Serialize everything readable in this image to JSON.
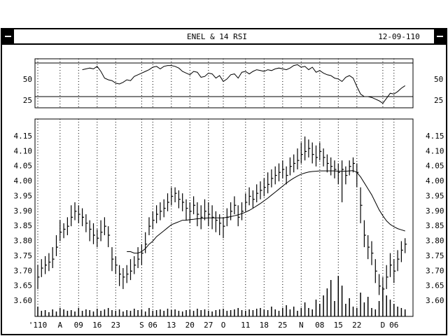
{
  "window": {
    "title": "ENEL & 14 RSI",
    "date": "12-09-110"
  },
  "chart_data": [
    {
      "type": "line",
      "color": "#000000",
      "ylim": [
        16.7,
        75
      ],
      "yticks": [
        25,
        50
      ],
      "reference_lines": [
        30,
        70
      ],
      "values": [
        null,
        null,
        null,
        null,
        null,
        null,
        null,
        null,
        null,
        null,
        null,
        null,
        62,
        63,
        64,
        63,
        66,
        60,
        52,
        50,
        49,
        46,
        45,
        47,
        50,
        49,
        54,
        56,
        58,
        60,
        62,
        65,
        66,
        63,
        66,
        67,
        67,
        66,
        64,
        60,
        58,
        56,
        60,
        59,
        53,
        54,
        58,
        57,
        52,
        55,
        48,
        51,
        56,
        57,
        52,
        59,
        60,
        57,
        60,
        62,
        61,
        60,
        62,
        61,
        63,
        64,
        63,
        62,
        64,
        67,
        68,
        65,
        66,
        62,
        65,
        59,
        61,
        58,
        56,
        55,
        52,
        51,
        48,
        53,
        55,
        52,
        42,
        33,
        30,
        30,
        29,
        27,
        25,
        22,
        28,
        34,
        33,
        36,
        40,
        43
      ]
    },
    {
      "type": "ohlc",
      "color": "#000000",
      "grid": true,
      "ylim": [
        3.5485,
        4.2085
      ],
      "yticks": [
        {
          "value": 3.6,
          "label": "3.60"
        },
        3.65,
        {
          "value": 3.7,
          "label": "3.70"
        },
        3.75,
        {
          "value": 3.8,
          "label": "3.80"
        },
        3.85,
        {
          "value": 3.9,
          "label": "3.90"
        },
        3.95,
        {
          "value": 4.0,
          "label": "4.00"
        },
        4.05,
        {
          "value": 4.1,
          "label": "4.10"
        },
        4.15
      ],
      "categories": [
        "'110",
        null,
        null,
        null,
        null,
        null,
        "A",
        null,
        null,
        null,
        null,
        "09",
        null,
        null,
        null,
        null,
        "16",
        null,
        null,
        null,
        null,
        "23",
        null,
        null,
        null,
        null,
        null,
        null,
        "S",
        null,
        null,
        "06",
        null,
        null,
        null,
        null,
        "13",
        null,
        null,
        null,
        null,
        "20",
        null,
        null,
        null,
        null,
        "27",
        null,
        null,
        null,
        "O",
        null,
        null,
        null,
        null,
        null,
        "11",
        null,
        null,
        null,
        null,
        "18",
        null,
        null,
        null,
        null,
        "25",
        null,
        null,
        null,
        null,
        "N",
        null,
        null,
        null,
        null,
        "08",
        null,
        null,
        null,
        null,
        "15",
        null,
        null,
        null,
        null,
        "22",
        null,
        null,
        null,
        null,
        null,
        null,
        "D",
        null,
        null,
        "06",
        null,
        null,
        null
      ],
      "high": [
        3.72,
        3.74,
        3.75,
        3.76,
        3.78,
        3.82,
        3.87,
        3.86,
        3.88,
        3.92,
        3.93,
        3.92,
        3.91,
        3.89,
        3.87,
        3.86,
        3.84,
        3.87,
        3.88,
        3.85,
        3.78,
        3.75,
        3.72,
        3.71,
        3.72,
        3.74,
        3.75,
        3.78,
        3.79,
        3.83,
        3.88,
        3.9,
        3.92,
        3.93,
        3.94,
        3.96,
        3.98,
        3.98,
        3.97,
        3.96,
        3.94,
        3.93,
        3.95,
        3.93,
        3.92,
        3.94,
        3.93,
        3.92,
        3.9,
        3.89,
        3.88,
        3.91,
        3.93,
        3.95,
        3.92,
        3.93,
        3.96,
        3.98,
        3.97,
        3.99,
        4.0,
        4.01,
        4.03,
        4.04,
        4.05,
        4.06,
        4.07,
        4.05,
        4.08,
        4.09,
        4.11,
        4.13,
        4.15,
        4.14,
        4.13,
        4.12,
        4.13,
        4.11,
        4.09,
        4.08,
        4.07,
        4.06,
        4.07,
        4.05,
        4.07,
        4.08,
        4.06,
        3.98,
        3.87,
        3.82,
        3.8,
        3.74,
        3.69,
        3.68,
        3.72,
        3.76,
        3.74,
        3.77,
        3.8,
        3.81
      ],
      "low": [
        3.64,
        3.68,
        3.69,
        3.7,
        3.71,
        3.75,
        3.8,
        3.81,
        3.82,
        3.85,
        3.87,
        3.86,
        3.85,
        3.83,
        3.8,
        3.79,
        3.78,
        3.8,
        3.82,
        3.78,
        3.7,
        3.69,
        3.65,
        3.64,
        3.66,
        3.67,
        3.69,
        3.71,
        3.72,
        3.76,
        3.82,
        3.84,
        3.86,
        3.87,
        3.88,
        3.9,
        3.92,
        3.93,
        3.91,
        3.9,
        3.87,
        3.86,
        3.89,
        3.85,
        3.84,
        3.87,
        3.85,
        3.84,
        3.83,
        3.82,
        3.81,
        3.85,
        3.87,
        3.89,
        3.85,
        3.87,
        3.9,
        3.92,
        3.91,
        3.93,
        3.94,
        3.95,
        3.96,
        3.98,
        3.99,
        4.0,
        4.01,
        3.99,
        4.02,
        4.03,
        4.04,
        4.06,
        4.07,
        4.08,
        4.06,
        4.05,
        4.07,
        4.05,
        4.03,
        4.02,
        4.01,
        3.99,
        3.93,
        3.99,
        4.02,
        4.03,
        3.98,
        3.86,
        3.78,
        3.74,
        3.72,
        3.66,
        3.62,
        3.6,
        3.64,
        3.68,
        3.66,
        3.7,
        3.73,
        3.76
      ],
      "close": [
        3.68,
        3.71,
        3.72,
        3.73,
        3.74,
        3.78,
        3.83,
        3.84,
        3.85,
        3.88,
        3.9,
        3.89,
        3.88,
        3.86,
        3.84,
        3.82,
        3.81,
        3.83,
        3.85,
        3.82,
        3.74,
        3.72,
        3.69,
        3.68,
        3.69,
        3.7,
        3.72,
        3.74,
        3.76,
        3.79,
        3.85,
        3.87,
        3.89,
        3.9,
        3.91,
        3.93,
        3.95,
        3.96,
        3.94,
        3.93,
        3.91,
        3.9,
        3.92,
        3.89,
        3.88,
        3.9,
        3.89,
        3.88,
        3.87,
        3.86,
        3.85,
        3.88,
        3.9,
        3.92,
        3.88,
        3.9,
        3.93,
        3.95,
        3.94,
        3.96,
        3.97,
        3.98,
        3.99,
        4.01,
        4.02,
        4.03,
        4.04,
        4.02,
        4.05,
        4.06,
        4.07,
        4.09,
        4.1,
        4.11,
        4.09,
        4.08,
        4.1,
        4.08,
        4.06,
        4.05,
        4.04,
        4.03,
        4.04,
        4.02,
        4.05,
        4.06,
        4.03,
        3.92,
        3.82,
        3.78,
        3.76,
        3.7,
        3.65,
        3.64,
        3.68,
        3.72,
        3.7,
        3.74,
        3.77,
        3.79
      ],
      "ma": [
        null,
        null,
        null,
        null,
        null,
        null,
        null,
        null,
        null,
        null,
        null,
        null,
        null,
        null,
        null,
        null,
        null,
        null,
        null,
        null,
        null,
        null,
        null,
        null,
        3.765,
        3.765,
        3.76,
        3.76,
        3.765,
        3.775,
        3.79,
        3.8,
        3.815,
        3.825,
        3.835,
        3.845,
        3.855,
        3.86,
        3.865,
        3.87,
        3.87,
        3.872,
        3.873,
        3.875,
        3.876,
        3.877,
        3.878,
        3.878,
        3.878,
        3.878,
        3.878,
        3.88,
        3.882,
        3.885,
        3.888,
        3.892,
        3.897,
        3.903,
        3.91,
        3.918,
        3.926,
        3.935,
        3.944,
        3.954,
        3.964,
        3.974,
        3.984,
        3.994,
        4.003,
        4.011,
        4.018,
        4.024,
        4.028,
        4.031,
        4.033,
        4.034,
        4.035,
        4.035,
        4.035,
        4.035,
        4.035,
        4.034,
        4.034,
        4.034,
        4.035,
        4.036,
        4.03,
        4.015,
        3.995,
        3.975,
        3.955,
        3.93,
        3.905,
        3.885,
        3.868,
        3.856,
        3.848,
        3.842,
        3.838,
        3.834
      ],
      "volume": [
        14,
        8,
        9,
        6,
        10,
        7,
        12,
        10,
        8,
        9,
        7,
        12,
        8,
        10,
        9,
        7,
        11,
        8,
        10,
        12,
        9,
        8,
        10,
        7,
        9,
        8,
        11,
        9,
        10,
        7,
        12,
        8,
        9,
        10,
        8,
        11,
        9,
        10,
        8,
        7,
        9,
        10,
        8,
        11,
        9,
        10,
        8,
        7,
        9,
        10,
        11,
        8,
        9,
        10,
        12,
        9,
        8,
        10,
        9,
        11,
        12,
        10,
        9,
        14,
        10,
        8,
        12,
        16,
        10,
        14,
        8,
        12,
        20,
        12,
        10,
        24,
        18,
        30,
        40,
        52,
        22,
        58,
        44,
        18,
        26,
        14,
        12,
        34,
        20,
        28,
        12,
        10,
        22,
        42,
        30,
        24,
        18,
        14,
        12,
        10
      ]
    }
  ]
}
